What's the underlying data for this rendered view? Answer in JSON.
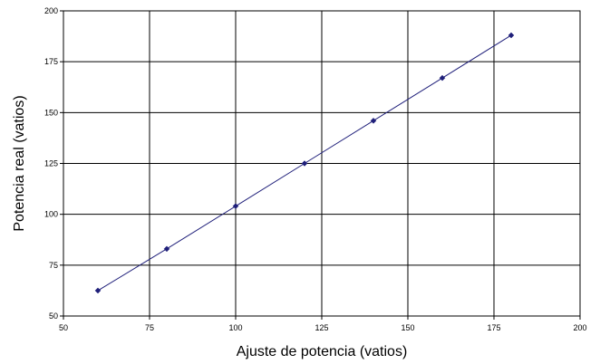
{
  "chart_data": {
    "type": "line",
    "title": "",
    "xlabel": "Ajuste de potencia (vatios)",
    "ylabel": "Potencia real (vatios)",
    "xlim": [
      50,
      200
    ],
    "ylim": [
      50,
      200
    ],
    "x_ticks": [
      50,
      75,
      100,
      125,
      150,
      175,
      200
    ],
    "y_ticks": [
      50,
      75,
      100,
      125,
      150,
      175,
      200
    ],
    "grid": true,
    "legend": "none",
    "series": [
      {
        "x": [
          60,
          80,
          100,
          120,
          140,
          160,
          180
        ],
        "values": [
          62.5,
          83,
          104,
          125,
          146,
          167,
          188
        ],
        "color": "#1f1f7a",
        "marker": "diamond"
      }
    ]
  }
}
